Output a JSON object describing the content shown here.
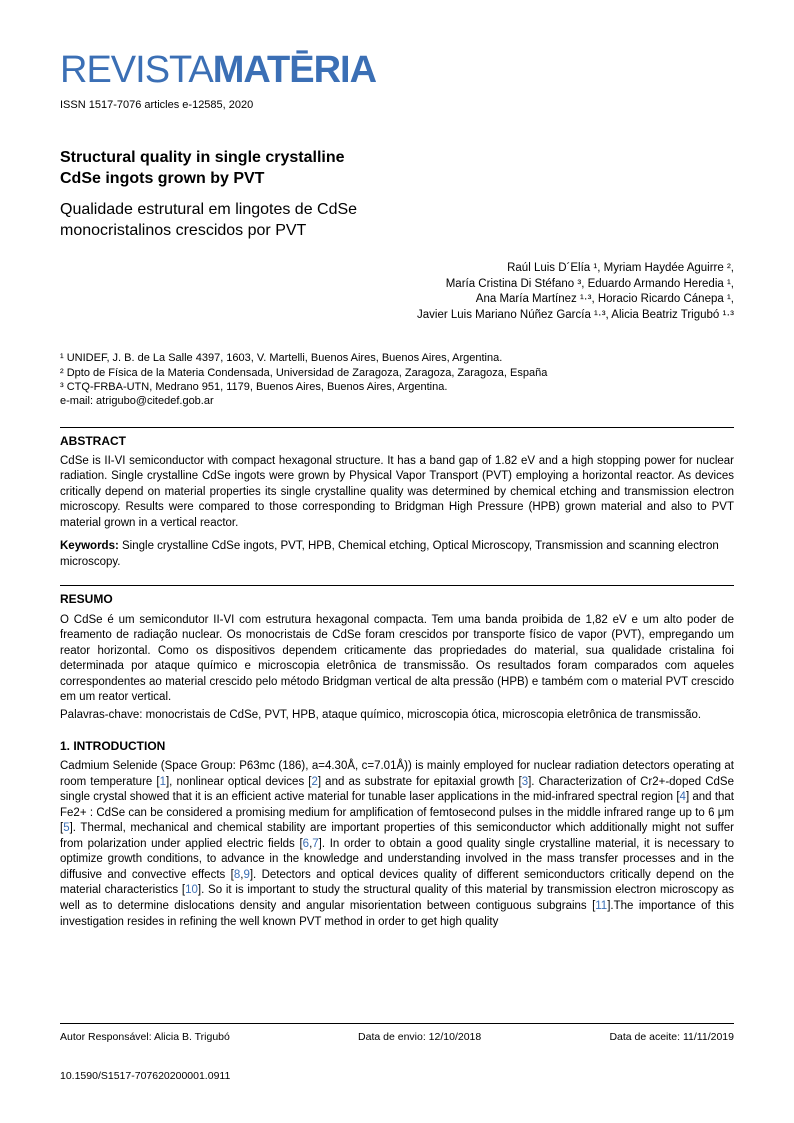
{
  "journal": {
    "logo_prefix": "REVISTA",
    "logo_main": "MATĒRIA",
    "issn_line": "ISSN 1517-7076 articles e-12585, 2020",
    "colors": {
      "logo": "#3b6fb5",
      "link": "#3b6fb5"
    }
  },
  "titles": {
    "en_line1": "Structural quality in single crystalline",
    "en_line2": "CdSe ingots grown by PVT",
    "pt_line1": "Qualidade estrutural em lingotes de CdSe",
    "pt_line2": "monocristalinos crescidos por PVT"
  },
  "authors": {
    "line1": "Raúl Luis D´Elía ¹, Myriam Haydée Aguirre ²,",
    "line2": "María Cristina Di Stéfano ³, Eduardo Armando Heredia ¹,",
    "line3": "Ana María Martínez ¹·³, Horacio Ricardo Cánepa ¹,",
    "line4": "Javier Luis Mariano Núñez García ¹·³, Alicia Beatriz Trigubó ¹·³"
  },
  "affiliations": {
    "a1": "¹ UNIDEF, J. B. de La Salle 4397, 1603, V. Martelli, Buenos Aires, Buenos Aires, Argentina.",
    "a2": "² Dpto de Física de la Materia Condensada, Universidad de Zaragoza, Zaragoza, Zaragoza, España",
    "a3": "³ CTQ-FRBA-UTN, Medrano 951, 1179, Buenos Aires, Buenos Aires, Argentina.",
    "email": "e-mail: atrigubo@citedef.gob.ar"
  },
  "abstract": {
    "heading": "ABSTRACT",
    "text": "CdSe is II-VI semiconductor with compact hexagonal structure. It has a band gap of 1.82 eV and a high stopping power for nuclear radiation. Single crystalline CdSe ingots were grown by Physical Vapor Transport (PVT) employing a horizontal reactor. As devices critically depend on material properties its single crystalline quality was determined by chemical etching and transmission electron microscopy. Results were compared to those corresponding to Bridgman High Pressure (HPB) grown material and also to PVT material grown in a vertical reactor.",
    "keywords_label": "Keywords:",
    "keywords": " Single crystalline CdSe ingots, PVT, HPB, Chemical etching, Optical Microscopy, Transmission and scanning electron microscopy."
  },
  "resumo": {
    "heading": "RESUMO",
    "text": "O CdSe é um semicondutor II-VI com estrutura hexagonal compacta. Tem uma banda proibida de 1,82 eV e um alto poder de freamento de radiação nuclear. Os monocristais de CdSe foram crescidos por transporte físico de vapor (PVT), empregando um reator horizontal. Como os dispositivos dependem criticamente das propriedades do material, sua qualidade cristalina foi determinada por ataque químico e microscopia eletrônica de transmissão. Os resultados foram comparados com aqueles correspondentes ao material crescido pelo método Bridgman vertical de alta pressão (HPB) e também com o material PVT crescido em um reator vertical.",
    "palavras": "Palavras-chave: monocristais de CdSe, PVT, HPB, ataque químico, microscopia ótica, microscopia eletrônica de transmissão."
  },
  "introduction": {
    "heading": "1. INTRODUCTION",
    "p1a": "Cadmium Selenide (Space Group: P63mc (186), a=4.30Å, c=7.01Å)) is mainly employed for nuclear radiation detectors operating at room temperature [",
    "r1": "1",
    "p1b": "], nonlinear optical devices [",
    "r2": "2",
    "p1c": "] and as substrate for epitaxial growth [",
    "r3": "3",
    "p1d": "]. Characterization of Cr2+-doped CdSe single crystal showed that it is an efficient active material for tunable laser applications in the mid-infrared spectral region [",
    "r4": "4",
    "p1e": "] and that Fe2+ : CdSe can be considered a promising medium for amplification of femtosecond pulses in the middle infrared range up to 6 μm [",
    "r5": "5",
    "p1f": "]. Thermal, mechanical and chemical stability are important properties of this semiconductor which additionally might not suffer from polarization under applied electric fields [",
    "r6": "6",
    "r7": "7",
    "p1g": "]. In order to obtain a good quality single crystalline material, it is necessary to optimize growth conditions, to advance in the knowledge and understanding involved in the mass transfer processes and in the diffusive and convective effects [",
    "r8": "8",
    "r9": "9",
    "p1h": "]. Detectors and optical devices quality of different semiconductors critically depend on the material characteristics [",
    "r10": "10",
    "p1i": "]. So it is important to study the structural quality of this material by transmission electron microscopy as well as to determine dislocations density and angular misorientation between contiguous subgrains [",
    "r11": "11",
    "p1j": "].The importance of this investigation resides in refining the well known PVT method in order to get high quality"
  },
  "footer": {
    "author": "Autor Responsável: Alicia B. Trigubó",
    "sent": "Data de envio: 12/10/2018",
    "accepted": "Data de aceite: 11/11/2019",
    "doi": "10.1590/S1517-707620200001.0911"
  }
}
